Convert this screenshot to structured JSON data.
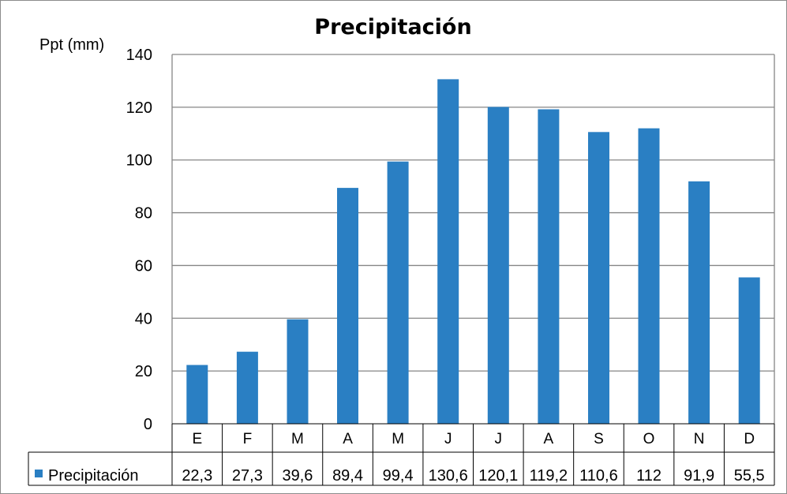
{
  "chart_data": {
    "type": "bar",
    "title": "Precipitación",
    "ylabel": "Ppt (mm)",
    "xlabel": "",
    "categories": [
      "E",
      "F",
      "M",
      "A",
      "M",
      "J",
      "J",
      "A",
      "S",
      "O",
      "N",
      "D"
    ],
    "series": [
      {
        "name": "Precipitación",
        "color": "#2a7fc3",
        "values": [
          22.3,
          27.3,
          39.6,
          89.4,
          99.4,
          130.6,
          120.1,
          119.2,
          110.6,
          112,
          91.9,
          55.5
        ],
        "table_labels": [
          "22,3",
          "27,3",
          "39,6",
          "89,4",
          "99,4",
          "130,6",
          "120,1",
          "119,2",
          "110,6",
          "112",
          "91,9",
          "55,5"
        ]
      }
    ],
    "ylim": [
      0,
      140
    ],
    "yticks": [
      0,
      20,
      40,
      60,
      80,
      100,
      120,
      140
    ],
    "grid": true,
    "legend": "data-table"
  }
}
